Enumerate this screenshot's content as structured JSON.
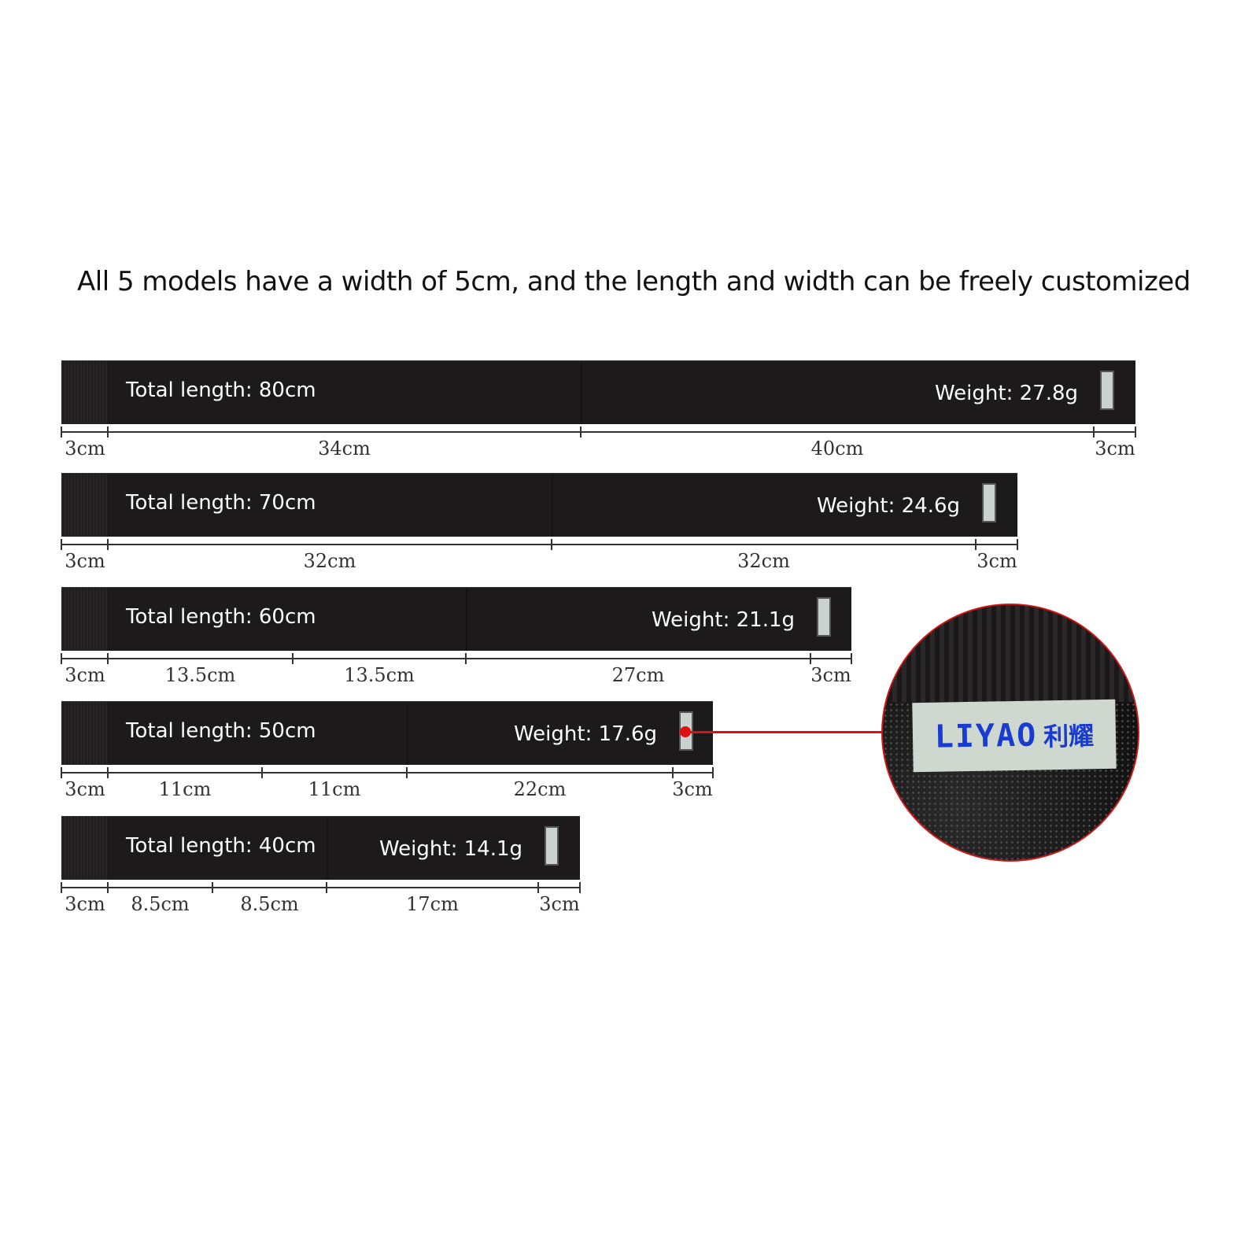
{
  "title": "All 5 models have a width of 5cm, and the length and width can be freely customized",
  "models": [
    {
      "total": "Total length: 80cm",
      "weight": "Weight: 27.8g",
      "segments": [
        "3cm",
        "34cm",
        "40cm",
        "3cm"
      ]
    },
    {
      "total": "Total length: 70cm",
      "weight": "Weight: 24.6g",
      "segments": [
        "3cm",
        "32cm",
        "32cm",
        "3cm"
      ]
    },
    {
      "total": "Total length: 60cm",
      "weight": "Weight: 21.1g",
      "segments": [
        "3cm",
        "13.5cm",
        "13.5cm",
        "27cm",
        "3cm"
      ]
    },
    {
      "total": "Total length: 50cm",
      "weight": "Weight: 17.6g",
      "segments": [
        "3cm",
        "11cm",
        "11cm",
        "22cm",
        "3cm"
      ]
    },
    {
      "total": "Total length: 40cm",
      "weight": "Weight: 14.1g",
      "segments": [
        "3cm",
        "8.5cm",
        "8.5cm",
        "17cm",
        "3cm"
      ]
    }
  ],
  "closeup": {
    "brand": "LIYAO",
    "brand_cn": "利耀"
  },
  "colors": {
    "strap": "#1c1a1a",
    "callout": "#e01010",
    "label_text": "#1a3bd0"
  }
}
